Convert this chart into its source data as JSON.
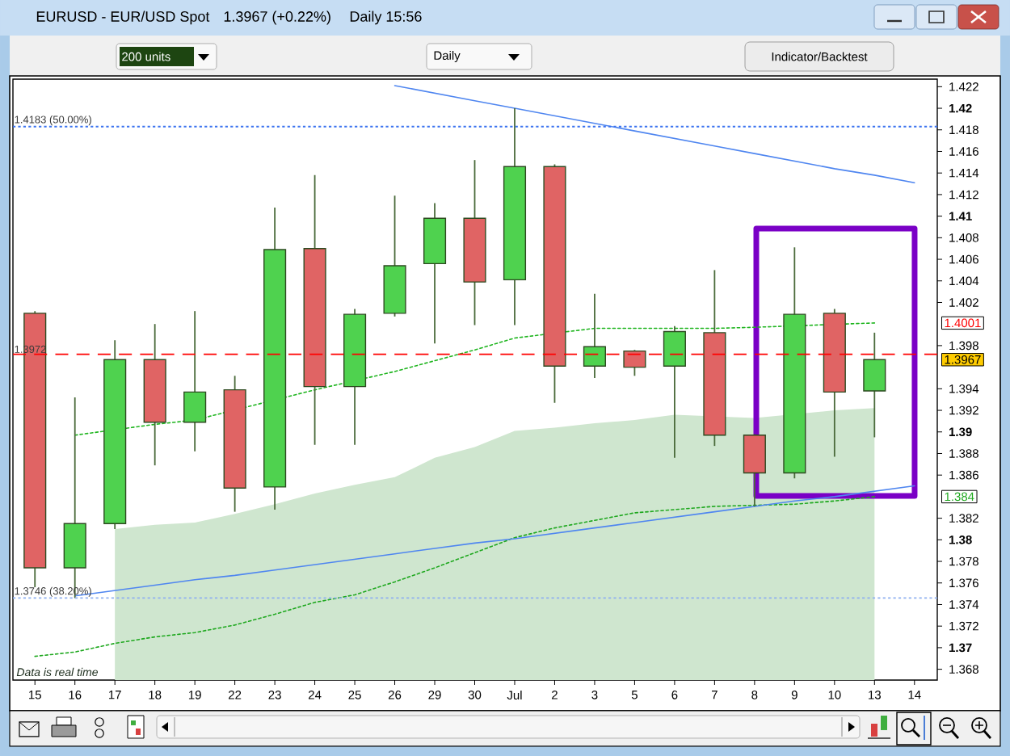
{
  "chart_data": {
    "type": "candlestick",
    "title": "EURUSD - EUR/USD Spot",
    "subtitle": "1.3967 (+0.22%)",
    "categories": [
      "15",
      "16",
      "17",
      "18",
      "19",
      "22",
      "23",
      "24",
      "25",
      "26",
      "29",
      "30",
      "Jul",
      "2",
      "3",
      "5",
      "6",
      "7",
      "8",
      "9",
      "10",
      "13",
      "14"
    ],
    "ohlc": [
      [
        1.401,
        1.4012,
        1.3756,
        1.3774
      ],
      [
        1.3774,
        1.3932,
        1.3746,
        1.3815
      ],
      [
        1.3815,
        1.3985,
        1.381,
        1.3967
      ],
      [
        1.3967,
        1.4,
        1.3869,
        1.3909
      ],
      [
        1.3909,
        1.4012,
        1.3882,
        1.3937
      ],
      [
        1.3939,
        1.3952,
        1.3826,
        1.3848
      ],
      [
        1.3849,
        1.4108,
        1.3828,
        1.4069
      ],
      [
        1.407,
        1.4138,
        1.3888,
        1.3942
      ],
      [
        1.3942,
        1.4014,
        1.3888,
        1.4009
      ],
      [
        1.401,
        1.4119,
        1.4007,
        1.4054
      ],
      [
        1.4056,
        1.4112,
        1.3982,
        1.4098
      ],
      [
        1.4098,
        1.4152,
        1.3999,
        1.4039
      ],
      [
        1.4041,
        1.42,
        1.3999,
        1.4146
      ],
      [
        1.4146,
        1.4148,
        1.3927,
        1.3961
      ],
      [
        1.3961,
        1.4028,
        1.395,
        1.3979
      ],
      [
        1.3975,
        1.3976,
        1.3952,
        1.396
      ],
      [
        1.3961,
        1.3998,
        1.3876,
        1.3993
      ],
      [
        1.3992,
        1.405,
        1.3887,
        1.3897
      ],
      [
        1.3897,
        1.3898,
        1.3831,
        1.3862
      ],
      [
        1.3862,
        1.4071,
        1.3857,
        1.4009
      ],
      [
        1.401,
        1.4014,
        1.3877,
        1.3937
      ],
      [
        1.3938,
        1.3992,
        1.3895,
        1.3967
      ],
      null
    ],
    "colors": [
      "#e06464",
      "#4fd24f",
      "#4fd24f",
      "#e06464",
      "#4fd24f",
      "#e06464",
      "#4fd24f",
      "#e06464",
      "#4fd24f",
      "#4fd24f",
      "#4fd24f",
      "#e06464",
      "#4fd24f",
      "#e06464",
      "#4fd24f",
      "#e06464",
      "#4fd24f",
      "#e06464",
      "#e06464",
      "#4fd24f",
      "#e06464",
      "#4fd24f",
      null
    ],
    "ylim": [
      1.367,
      1.4227
    ],
    "yticks": [
      1.368,
      1.37,
      1.372,
      1.374,
      1.376,
      1.378,
      1.38,
      1.382,
      1.386,
      1.388,
      1.39,
      1.392,
      1.394,
      1.398,
      1.402,
      1.404,
      1.406,
      1.408,
      1.41,
      1.412,
      1.414,
      1.416,
      1.418,
      1.42,
      1.422
    ],
    "series": [
      {
        "type": "area",
        "color": "#cfe6cf",
        "values": [
          null,
          null,
          1.381,
          1.3814,
          1.3816,
          1.3824,
          1.3833,
          1.3843,
          1.3851,
          1.3858,
          1.3876,
          1.3886,
          1.3901,
          1.3904,
          1.3908,
          1.3911,
          1.3916,
          null,
          1.3913,
          null,
          1.392,
          1.3922,
          null
        ]
      },
      {
        "type": "line",
        "color": "#1fa81f",
        "line_style": "dotted",
        "values": [
          1.3692,
          1.3696,
          1.3704,
          1.371,
          1.3714,
          1.3721,
          1.3731,
          1.3742,
          1.3749,
          1.3761,
          1.3774,
          1.3788,
          1.3802,
          1.3811,
          1.3818,
          1.3825,
          1.3828,
          1.3831,
          1.3832,
          1.3833,
          1.3836,
          1.384,
          null
        ]
      },
      {
        "type": "line",
        "color": "#1fb51f",
        "line_style": "dotted",
        "values": [
          null,
          1.3897,
          null,
          1.3907,
          1.3911,
          null,
          null,
          1.3939,
          null,
          1.3956,
          1.3966,
          1.3976,
          1.3987,
          null,
          1.3996,
          1.3996,
          1.3996,
          1.3996,
          1.3997,
          null,
          null,
          1.4001,
          null
        ]
      },
      {
        "type": "line",
        "color": "#4f86f0",
        "line_style": "solid",
        "values": [
          null,
          null,
          null,
          null,
          null,
          null,
          null,
          null,
          null,
          1.4221,
          1.4214,
          1.4207,
          1.42,
          1.4193,
          1.4186,
          1.4179,
          1.4172,
          1.4165,
          1.4158,
          1.4151,
          1.4144,
          1.4138,
          1.4131
        ]
      },
      {
        "type": "line",
        "color": "#4f86f0",
        "line_style": "solid",
        "values": [
          null,
          1.3748,
          1.3753,
          1.3758,
          1.3763,
          1.3767,
          1.3772,
          1.3777,
          1.3782,
          1.3787,
          1.3792,
          1.3797,
          1.3801,
          1.3806,
          1.3811,
          1.3816,
          1.3821,
          1.3826,
          1.3831,
          1.3836,
          1.384,
          1.3845,
          1.385
        ]
      }
    ],
    "ref_lines": [
      {
        "axis": "y",
        "value": 1.3972,
        "label": "1.3972",
        "color": "#ff0000",
        "line_style": "dashed"
      },
      {
        "axis": "y",
        "value": 1.4183,
        "label": "1.4183 (50.00%)",
        "color": "#3b73f0",
        "line_style": "dotted"
      },
      {
        "axis": "y",
        "value": 1.3746,
        "label": "1.3746 (38.20%)",
        "color": "#8fb0f0",
        "line_style": "dotted"
      }
    ],
    "annotations": [
      "Daily  15:56",
      "200 units",
      "Daily",
      "Indicator/Backtest",
      "Data is real time",
      "1.4001",
      "1.3967",
      "1.384"
    ]
  }
}
